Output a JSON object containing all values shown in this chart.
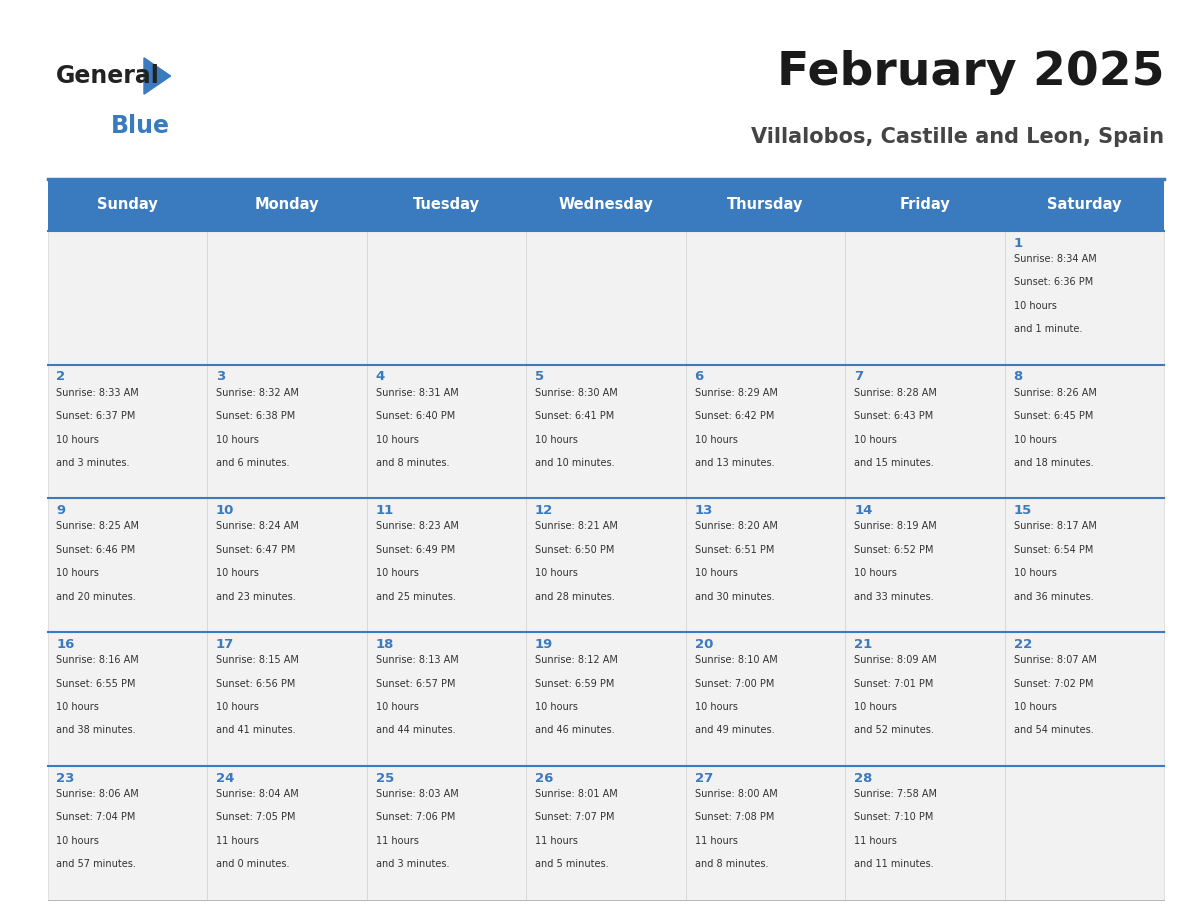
{
  "title": "February 2025",
  "subtitle": "Villalobos, Castille and Leon, Spain",
  "header_color": "#3a7abf",
  "header_text_color": "#ffffff",
  "cell_bg_color": "#f2f2f2",
  "cell_text_color": "#333333",
  "day_number_color": "#3a7abf",
  "border_color": "#3a7abf",
  "days_of_week": [
    "Sunday",
    "Monday",
    "Tuesday",
    "Wednesday",
    "Thursday",
    "Friday",
    "Saturday"
  ],
  "calendar_data": [
    [
      null,
      null,
      null,
      null,
      null,
      null,
      {
        "day": 1,
        "sunrise": "8:34 AM",
        "sunset": "6:36 PM",
        "daylight": "10 hours\nand 1 minute."
      }
    ],
    [
      {
        "day": 2,
        "sunrise": "8:33 AM",
        "sunset": "6:37 PM",
        "daylight": "10 hours\nand 3 minutes."
      },
      {
        "day": 3,
        "sunrise": "8:32 AM",
        "sunset": "6:38 PM",
        "daylight": "10 hours\nand 6 minutes."
      },
      {
        "day": 4,
        "sunrise": "8:31 AM",
        "sunset": "6:40 PM",
        "daylight": "10 hours\nand 8 minutes."
      },
      {
        "day": 5,
        "sunrise": "8:30 AM",
        "sunset": "6:41 PM",
        "daylight": "10 hours\nand 10 minutes."
      },
      {
        "day": 6,
        "sunrise": "8:29 AM",
        "sunset": "6:42 PM",
        "daylight": "10 hours\nand 13 minutes."
      },
      {
        "day": 7,
        "sunrise": "8:28 AM",
        "sunset": "6:43 PM",
        "daylight": "10 hours\nand 15 minutes."
      },
      {
        "day": 8,
        "sunrise": "8:26 AM",
        "sunset": "6:45 PM",
        "daylight": "10 hours\nand 18 minutes."
      }
    ],
    [
      {
        "day": 9,
        "sunrise": "8:25 AM",
        "sunset": "6:46 PM",
        "daylight": "10 hours\nand 20 minutes."
      },
      {
        "day": 10,
        "sunrise": "8:24 AM",
        "sunset": "6:47 PM",
        "daylight": "10 hours\nand 23 minutes."
      },
      {
        "day": 11,
        "sunrise": "8:23 AM",
        "sunset": "6:49 PM",
        "daylight": "10 hours\nand 25 minutes."
      },
      {
        "day": 12,
        "sunrise": "8:21 AM",
        "sunset": "6:50 PM",
        "daylight": "10 hours\nand 28 minutes."
      },
      {
        "day": 13,
        "sunrise": "8:20 AM",
        "sunset": "6:51 PM",
        "daylight": "10 hours\nand 30 minutes."
      },
      {
        "day": 14,
        "sunrise": "8:19 AM",
        "sunset": "6:52 PM",
        "daylight": "10 hours\nand 33 minutes."
      },
      {
        "day": 15,
        "sunrise": "8:17 AM",
        "sunset": "6:54 PM",
        "daylight": "10 hours\nand 36 minutes."
      }
    ],
    [
      {
        "day": 16,
        "sunrise": "8:16 AM",
        "sunset": "6:55 PM",
        "daylight": "10 hours\nand 38 minutes."
      },
      {
        "day": 17,
        "sunrise": "8:15 AM",
        "sunset": "6:56 PM",
        "daylight": "10 hours\nand 41 minutes."
      },
      {
        "day": 18,
        "sunrise": "8:13 AM",
        "sunset": "6:57 PM",
        "daylight": "10 hours\nand 44 minutes."
      },
      {
        "day": 19,
        "sunrise": "8:12 AM",
        "sunset": "6:59 PM",
        "daylight": "10 hours\nand 46 minutes."
      },
      {
        "day": 20,
        "sunrise": "8:10 AM",
        "sunset": "7:00 PM",
        "daylight": "10 hours\nand 49 minutes."
      },
      {
        "day": 21,
        "sunrise": "8:09 AM",
        "sunset": "7:01 PM",
        "daylight": "10 hours\nand 52 minutes."
      },
      {
        "day": 22,
        "sunrise": "8:07 AM",
        "sunset": "7:02 PM",
        "daylight": "10 hours\nand 54 minutes."
      }
    ],
    [
      {
        "day": 23,
        "sunrise": "8:06 AM",
        "sunset": "7:04 PM",
        "daylight": "10 hours\nand 57 minutes."
      },
      {
        "day": 24,
        "sunrise": "8:04 AM",
        "sunset": "7:05 PM",
        "daylight": "11 hours\nand 0 minutes."
      },
      {
        "day": 25,
        "sunrise": "8:03 AM",
        "sunset": "7:06 PM",
        "daylight": "11 hours\nand 3 minutes."
      },
      {
        "day": 26,
        "sunrise": "8:01 AM",
        "sunset": "7:07 PM",
        "daylight": "11 hours\nand 5 minutes."
      },
      {
        "day": 27,
        "sunrise": "8:00 AM",
        "sunset": "7:08 PM",
        "daylight": "11 hours\nand 8 minutes."
      },
      {
        "day": 28,
        "sunrise": "7:58 AM",
        "sunset": "7:10 PM",
        "daylight": "11 hours\nand 11 minutes."
      },
      null
    ]
  ],
  "logo_general_color": "#222222",
  "logo_blue_color": "#3a7abf",
  "logo_triangle_color": "#3a7abf"
}
